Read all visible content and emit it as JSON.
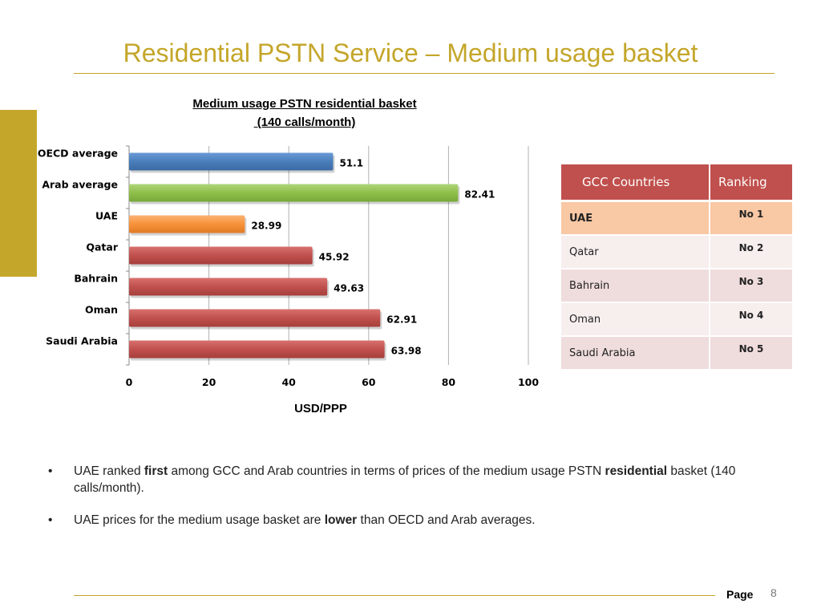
{
  "slide": {
    "title": "Residential PSTN Service – Medium usage basket",
    "accent_color": "#c4a62a"
  },
  "chart_data": {
    "type": "bar",
    "orientation": "horizontal",
    "title": "Medium usage PSTN residential basket",
    "subtitle": " (140 calls/month)",
    "xlabel": "USD/PPP",
    "ylabel": "",
    "categories": [
      "OECD average",
      "Arab average",
      "UAE",
      "Qatar",
      "Bahrain",
      "Oman",
      "Saudi Arabia"
    ],
    "values": [
      51.1,
      82.41,
      28.99,
      45.92,
      49.63,
      62.91,
      63.98
    ],
    "value_labels": [
      "51.1",
      "82.41",
      "28.99",
      "45.92",
      "49.63",
      "62.91",
      "63.98"
    ],
    "bar_colors": [
      "#4a7ebb",
      "#8fbf4a",
      "#f7923a",
      "#c0504d",
      "#c0504d",
      "#c0504d",
      "#c0504d"
    ],
    "xlim": [
      0,
      100
    ],
    "xticks": [
      0,
      20,
      40,
      60,
      80,
      100
    ],
    "grid": "vertical"
  },
  "table": {
    "headers": [
      "GCC Countries",
      "Ranking"
    ],
    "rows": [
      {
        "country": "UAE",
        "rank": "No 1"
      },
      {
        "country": "Qatar",
        "rank": "No 2"
      },
      {
        "country": "Bahrain",
        "rank": "No 3"
      },
      {
        "country": "Oman",
        "rank": "No 4"
      },
      {
        "country": "Saudi Arabia",
        "rank": "No 5"
      }
    ]
  },
  "bullets": [
    {
      "marker": "•",
      "t1": "UAE ranked ",
      "b1": "first",
      "t2": " among GCC and Arab countries in terms of prices of the medium usage PSTN ",
      "b2": "residential",
      "t3": " basket (140 calls/month)."
    },
    {
      "marker": "•",
      "t1": "UAE prices for the medium usage basket are ",
      "b1": "lower",
      "t2": " than OECD and Arab averages."
    }
  ],
  "footer": {
    "page_label": "Page",
    "page_number": "8"
  }
}
